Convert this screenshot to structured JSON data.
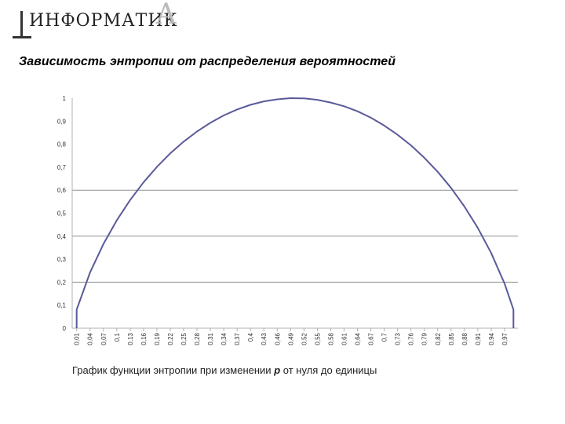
{
  "header": {
    "logo_text": "ИНФОРМАТИК",
    "logo_letter": "А",
    "title": "Зависимость энтропии от распределения вероятностей"
  },
  "caption": {
    "before": "График функции энтропии при изменении ",
    "variable": "p",
    "after": " от нуля до единицы"
  },
  "chart_data": {
    "type": "line",
    "title": "",
    "xlabel": "",
    "ylabel": "",
    "ylim": [
      0,
      1
    ],
    "y_ticks": [
      "0",
      "0,1",
      "0,2",
      "0,3",
      "0,4",
      "0,5",
      "0,6",
      "0,7",
      "0,8",
      "0,9",
      "1"
    ],
    "x_tick_labels": [
      "0,01",
      "0,04",
      "0,07",
      "0,1",
      "0,13",
      "0,16",
      "0,19",
      "0,22",
      "0,25",
      "0,28",
      "0,31",
      "0,34",
      "0,37",
      "0,4",
      "0,43",
      "0,46",
      "0,49",
      "0,52",
      "0,55",
      "0,58",
      "0,61",
      "0,64",
      "0,67",
      "0,7",
      "0,73",
      "0,76",
      "0,79",
      "0,82",
      "0,85",
      "0,88",
      "0,91",
      "0,94",
      "0,97"
    ],
    "x": [
      0.01,
      0.04,
      0.07,
      0.1,
      0.13,
      0.16,
      0.19,
      0.22,
      0.25,
      0.28,
      0.31,
      0.34,
      0.37,
      0.4,
      0.43,
      0.46,
      0.49,
      0.52,
      0.55,
      0.58,
      0.61,
      0.64,
      0.67,
      0.7,
      0.73,
      0.76,
      0.79,
      0.82,
      0.85,
      0.88,
      0.91,
      0.94,
      0.97,
      0.99
    ],
    "series": [
      {
        "values": [
          0.081,
          0.242,
          0.366,
          0.469,
          0.557,
          0.634,
          0.701,
          0.76,
          0.811,
          0.855,
          0.893,
          0.925,
          0.951,
          0.971,
          0.986,
          0.995,
          1.0,
          0.999,
          0.993,
          0.981,
          0.965,
          0.943,
          0.915,
          0.881,
          0.841,
          0.795,
          0.741,
          0.68,
          0.61,
          0.529,
          0.436,
          0.327,
          0.194,
          0.081
        ]
      }
    ],
    "gridlines": [
      0.2,
      0.4,
      0.6
    ],
    "colors": {
      "line": "#5a5a9a",
      "grid": "#909090",
      "axis": "#b0b0b0",
      "tick_text": "#333333"
    }
  }
}
